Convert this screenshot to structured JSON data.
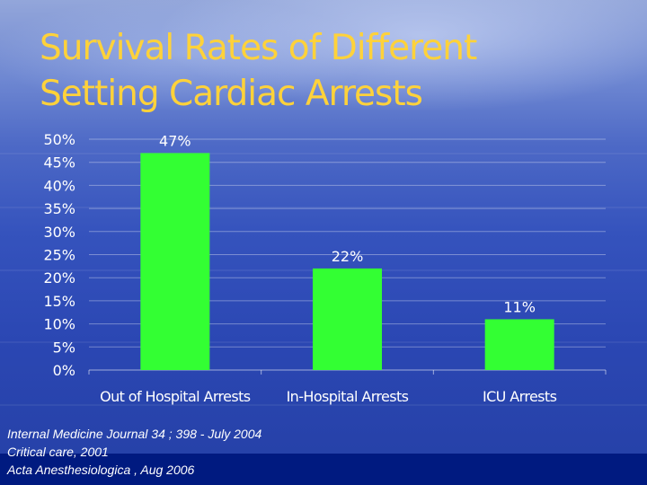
{
  "slide": {
    "title_lines": [
      "Survival Rates of Different",
      "Setting Cardiac Arrests"
    ],
    "sources": [
      "Internal Medicine Journal 34 ; 398  - July 2004",
      "Critical care, 2001",
      "Acta Anesthesiologica , Aug 2006"
    ]
  },
  "colors": {
    "title": "#ffd23a",
    "bar": "#33ff33",
    "text": "#ffffff",
    "footer_bar": "#001a80"
  },
  "chart_data": {
    "type": "bar",
    "categories": [
      "Out of Hospital Arrests",
      "In-Hospital Arrests",
      "ICU Arrests"
    ],
    "values": [
      47,
      22,
      11
    ],
    "data_labels": [
      "47%",
      "22%",
      "11%"
    ],
    "y_ticks": [
      "0%",
      "5%",
      "10%",
      "15%",
      "20%",
      "25%",
      "30%",
      "35%",
      "40%",
      "45%",
      "50%"
    ],
    "ylim": [
      0,
      50
    ],
    "grid": true,
    "legend": false,
    "xlabel": "",
    "ylabel": ""
  }
}
